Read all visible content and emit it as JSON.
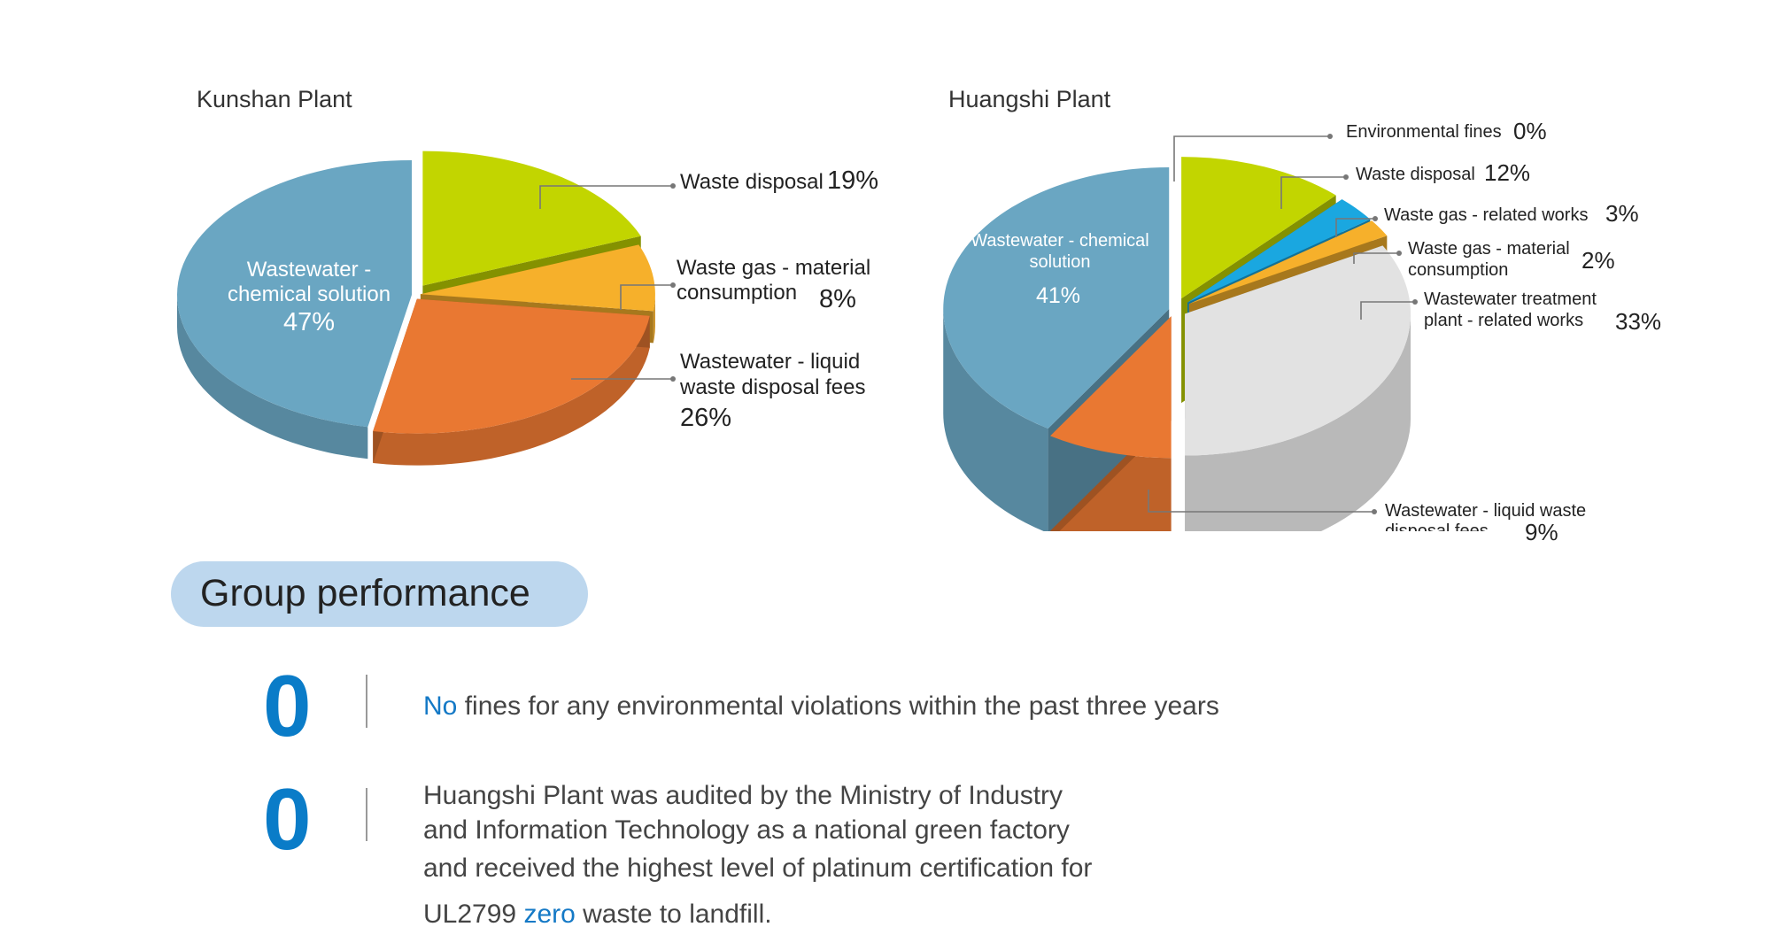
{
  "chart_data": [
    {
      "type": "pie",
      "title": "Kunshan Plant",
      "slices": [
        {
          "label": "Waste disposal",
          "value": 19,
          "display": "19%",
          "color": "#c2d500"
        },
        {
          "label": "Waste gas - material consumption",
          "value": 8,
          "display": "8%",
          "color": "#f6b02b"
        },
        {
          "label": "Wastewater - liquid waste disposal fees",
          "value": 26,
          "display": "26%",
          "color": "#e97832"
        },
        {
          "label": "Wastewater - chemical solution",
          "value": 47,
          "display": "47%",
          "color": "#6aa6c2"
        }
      ]
    },
    {
      "type": "pie",
      "title": "Huangshi Plant",
      "slices": [
        {
          "label": "Environmental fines",
          "value": 0,
          "display": "0%",
          "color": "#888888"
        },
        {
          "label": "Waste disposal",
          "value": 12,
          "display": "12%",
          "color": "#c2d500"
        },
        {
          "label": "Waste gas - related works",
          "value": 3,
          "display": "3%",
          "color": "#1aa7e0"
        },
        {
          "label": "Waste gas - material consumption",
          "value": 2,
          "display": "2%",
          "color": "#f6b02b"
        },
        {
          "label": "Wastewater treatment plant - related works",
          "value": 33,
          "display": "33%",
          "color": "#e2e2e2"
        },
        {
          "label": "Wastewater - liquid waste disposal fees",
          "value": 9,
          "display": "9%",
          "color": "#e97832"
        },
        {
          "label": "Wastewater - chemical solution",
          "value": 41,
          "display": "41%",
          "color": "#6aa6c2"
        }
      ]
    }
  ],
  "kunshan": {
    "title": "Kunshan Plant",
    "labels": {
      "waste_disposal": "Waste disposal",
      "waste_disposal_pct": "19%",
      "waste_gas_1": "Waste gas - material",
      "waste_gas_2": "consumption",
      "waste_gas_pct": "8%",
      "liquid_1": "Wastewater - liquid",
      "liquid_2": "waste disposal fees",
      "liquid_pct": "26%",
      "chem_1": "Wastewater -",
      "chem_2": "chemical solution",
      "chem_pct": "47%"
    }
  },
  "huangshi": {
    "title": "Huangshi Plant",
    "labels": {
      "fines": "Environmental fines",
      "fines_pct": "0%",
      "waste_disposal": "Waste disposal",
      "waste_disposal_pct": "12%",
      "gas_works": "Waste gas - related works",
      "gas_works_pct": "3%",
      "gas_mat_1": "Waste gas - material",
      "gas_mat_2": "consumption",
      "gas_mat_pct": "2%",
      "wwtp_1": "Wastewater treatment",
      "wwtp_2": "plant - related works",
      "wwtp_pct": "33%",
      "liquid_1": "Wastewater - liquid waste",
      "liquid_2": "disposal fees",
      "liquid_pct": "9%",
      "chem_1": "Wastewater - chemical",
      "chem_2": "solution",
      "chem_pct": "41%"
    }
  },
  "group": {
    "heading": "Group performance",
    "stats": [
      {
        "number": "0",
        "highlight": "No",
        "text": "fines for any environmental violations within the past three years"
      },
      {
        "number": "0",
        "line1": "Huangshi Plant was audited by the Ministry of Industry",
        "line2": "and Information Technology as a national green factory",
        "line3": "and received the highest level of platinum certification for",
        "line4_pre": "UL2799",
        "line4_hl": "zero",
        "line4_post": "waste to landfill."
      }
    ]
  },
  "colors": {
    "accent": "#0a7cc8",
    "highlight": "#1479c6",
    "pill": "#bdd7ee"
  }
}
